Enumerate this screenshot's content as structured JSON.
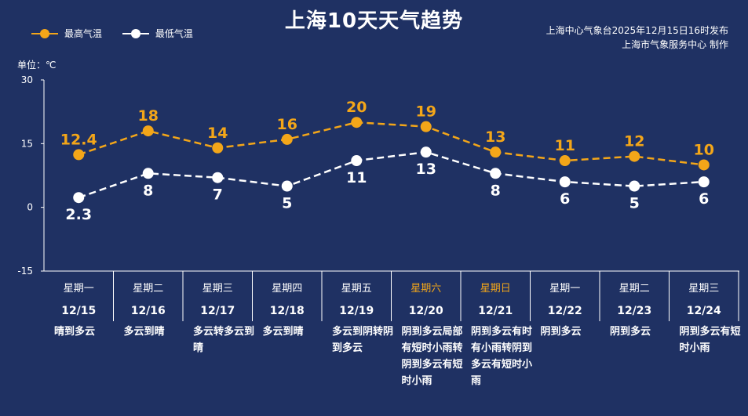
{
  "title": "上海10天天气趋势",
  "publisher": [
    "上海中心气象台2025年12月15日16时发布",
    "上海市气象服务中心  制作"
  ],
  "unit_label": "单位：℃",
  "colors": {
    "background": "#1f3163",
    "high": "#f3a619",
    "low": "#ffffff",
    "weekend": "#f3a619",
    "text": "#ffffff"
  },
  "chart_data": {
    "type": "line",
    "categories": [
      "12/15",
      "12/16",
      "12/17",
      "12/18",
      "12/19",
      "12/20",
      "12/21",
      "12/22",
      "12/23",
      "12/24"
    ],
    "weekdays": [
      "星期一",
      "星期二",
      "星期三",
      "星期四",
      "星期五",
      "星期六",
      "星期日",
      "星期一",
      "星期二",
      "星期三"
    ],
    "weekend_flags": [
      false,
      false,
      false,
      false,
      false,
      true,
      true,
      false,
      false,
      false
    ],
    "weather": [
      "晴到多云",
      "多云到晴",
      "多云转多云到晴",
      "多云到晴",
      "多云到阴转阴到多云",
      "阴到多云局部有短时小雨转阴到多云有短时小雨",
      "阴到多云有时有小雨转阴到多云有短时小雨",
      "阴到多云",
      "阴到多云",
      "阴到多云有短时小雨"
    ],
    "series": [
      {
        "name": "最高气温",
        "values": [
          12.4,
          18,
          14,
          16,
          20,
          19,
          13,
          11,
          12,
          10
        ],
        "labels": [
          "12.4",
          "18",
          "14",
          "16",
          "20",
          "19",
          "13",
          "11",
          "12",
          "10"
        ]
      },
      {
        "name": "最低气温",
        "values": [
          2.3,
          8,
          7,
          5,
          11,
          13,
          8,
          6,
          5,
          6
        ],
        "labels": [
          "2.3",
          "8",
          "7",
          "5",
          "11",
          "13",
          "8",
          "6",
          "5",
          "6"
        ]
      }
    ],
    "yticks": [
      "30",
      "15",
      "0",
      "-15"
    ],
    "ytick_values": [
      30,
      15,
      0,
      -15
    ],
    "ylim": [
      -15,
      30
    ],
    "legend_position": "top-left",
    "line_style": "dashed",
    "grid": false
  }
}
